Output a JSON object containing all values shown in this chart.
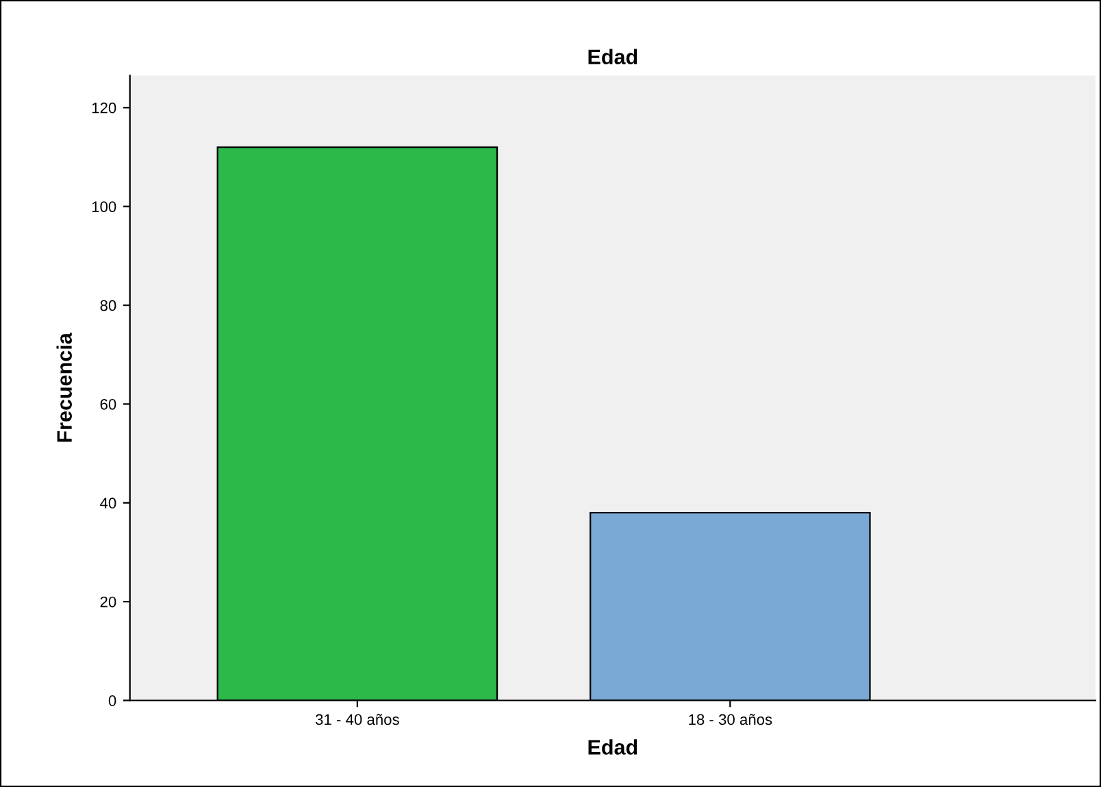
{
  "chart_data": {
    "type": "bar",
    "title": "Edad",
    "xlabel": "Edad",
    "ylabel": "Frecuencia",
    "categories": [
      "31 - 40 años",
      "18 - 30 años"
    ],
    "values": [
      112,
      38
    ],
    "colors": [
      "#2db84a",
      "#7ba9d6"
    ],
    "ylim": [
      0,
      126.5
    ],
    "yticks": [
      0,
      20,
      40,
      60,
      80,
      100,
      120
    ],
    "grid": false
  }
}
